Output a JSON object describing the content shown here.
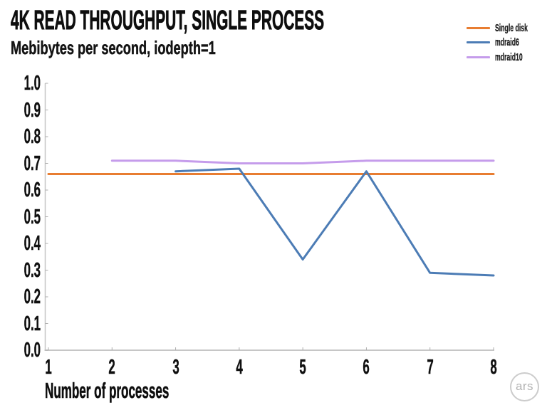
{
  "branding": {
    "logo_text": "ars"
  },
  "chart_data": {
    "type": "line",
    "title": "4K READ THROUGHPUT, SINGLE PROCESS",
    "subtitle": "Mebibytes per second, iodepth=1",
    "xlabel": "Number of processes",
    "ylabel": "",
    "xlim": [
      1,
      8
    ],
    "ylim": [
      0.0,
      1.0
    ],
    "xticks": [
      1,
      2,
      3,
      4,
      5,
      6,
      7,
      8
    ],
    "ytick_labels": [
      "0.0",
      "0.1",
      "0.2",
      "0.3",
      "0.4",
      "0.5",
      "0.6",
      "0.7",
      "0.8",
      "0.9",
      "1.0"
    ],
    "grid": false,
    "legend_position": "top-right",
    "axis_color": "#c6c6c6",
    "tick_color": "#adadad",
    "text_color": "#111111",
    "line_width": 3,
    "series": [
      {
        "name": "Single disk",
        "color": "#e87d31",
        "points": [
          [
            1,
            0.66
          ],
          [
            2,
            0.66
          ],
          [
            3,
            0.66
          ],
          [
            4,
            0.66
          ],
          [
            5,
            0.66
          ],
          [
            6,
            0.66
          ],
          [
            7,
            0.66
          ],
          [
            8,
            0.66
          ]
        ]
      },
      {
        "name": "mdraid6",
        "color": "#4c7cb5",
        "points": [
          [
            3,
            0.67
          ],
          [
            4,
            0.68
          ],
          [
            5,
            0.34
          ],
          [
            6,
            0.67
          ],
          [
            7,
            0.29
          ],
          [
            8,
            0.28
          ]
        ]
      },
      {
        "name": "mdraid10",
        "color": "#c59ceb",
        "points": [
          [
            2,
            0.71
          ],
          [
            3,
            0.71
          ],
          [
            4,
            0.7
          ],
          [
            5,
            0.7
          ],
          [
            6,
            0.71
          ],
          [
            7,
            0.71
          ],
          [
            8,
            0.71
          ]
        ]
      }
    ]
  }
}
